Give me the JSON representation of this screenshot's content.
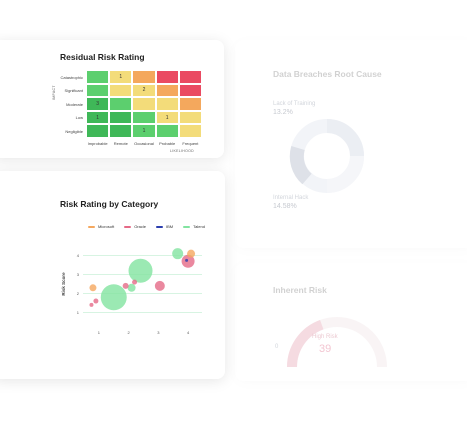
{
  "residual_card": {
    "title": "Residual Risk Rating",
    "y_axis_label": "IMPACT",
    "x_axis_label": "LIKELIHOOD",
    "rows": [
      "Catastrophic",
      "Significant",
      "Moderate",
      "Low",
      "Negligible"
    ],
    "columns": [
      "Improbable",
      "Remote",
      "Occasional",
      "Probable",
      "Frequent"
    ],
    "cells": [
      [
        {
          "c": "#5ccf6e",
          "v": ""
        },
        {
          "c": "#f3dc7a",
          "v": "1"
        },
        {
          "c": "#f4a85d",
          "v": ""
        },
        {
          "c": "#ea4a62",
          "v": ""
        },
        {
          "c": "#ea4a62",
          "v": ""
        }
      ],
      [
        {
          "c": "#5ccf6e",
          "v": ""
        },
        {
          "c": "#f3dc7a",
          "v": ""
        },
        {
          "c": "#f3dc7a",
          "v": "2"
        },
        {
          "c": "#f4a85d",
          "v": ""
        },
        {
          "c": "#ea4a62",
          "v": ""
        }
      ],
      [
        {
          "c": "#3fb858",
          "v": "3"
        },
        {
          "c": "#5ccf6e",
          "v": ""
        },
        {
          "c": "#f3dc7a",
          "v": ""
        },
        {
          "c": "#f3dc7a",
          "v": ""
        },
        {
          "c": "#f4a85d",
          "v": ""
        }
      ],
      [
        {
          "c": "#3fb858",
          "v": "1"
        },
        {
          "c": "#3fb858",
          "v": ""
        },
        {
          "c": "#5ccf6e",
          "v": ""
        },
        {
          "c": "#f3dc7a",
          "v": "1"
        },
        {
          "c": "#f3dc7a",
          "v": ""
        }
      ],
      [
        {
          "c": "#3fb858",
          "v": ""
        },
        {
          "c": "#3fb858",
          "v": ""
        },
        {
          "c": "#5ccf6e",
          "v": "1"
        },
        {
          "c": "#5ccf6e",
          "v": ""
        },
        {
          "c": "#f3dc7a",
          "v": ""
        }
      ]
    ]
  },
  "category_card": {
    "title": "Risk Rating by Category"
  },
  "chart_data": {
    "type": "scatter",
    "ylabel": "Risk Score",
    "legend_placement": "top",
    "x_ticks": [
      "1",
      "2",
      "3",
      "4"
    ],
    "y_ticks": [
      "1",
      "2",
      "3",
      "4"
    ],
    "xlim": [
      0.6,
      4.3
    ],
    "ylim": [
      0.6,
      4.4
    ],
    "series": [
      {
        "name": "Microsoft",
        "color": "#f5a85f",
        "points": [
          {
            "x": 0.8,
            "y": 2.3,
            "r": 0.35
          },
          {
            "x": 4.1,
            "y": 4.1,
            "r": 0.4
          }
        ]
      },
      {
        "name": "Oracle",
        "color": "#e56a87",
        "points": [
          {
            "x": 0.75,
            "y": 1.4,
            "r": 0.2
          },
          {
            "x": 0.9,
            "y": 1.6,
            "r": 0.25
          },
          {
            "x": 1.9,
            "y": 2.4,
            "r": 0.3
          },
          {
            "x": 2.2,
            "y": 2.6,
            "r": 0.25
          },
          {
            "x": 3.05,
            "y": 2.4,
            "r": 0.5
          },
          {
            "x": 4.0,
            "y": 3.7,
            "r": 0.65
          }
        ]
      },
      {
        "name": "IBM",
        "color": "#2c3fae",
        "points": [
          {
            "x": 3.95,
            "y": 3.75,
            "r": 0.15
          }
        ]
      },
      {
        "name": "Talend",
        "color": "#82e3a0",
        "points": [
          {
            "x": 2.4,
            "y": 3.2,
            "r": 1.2
          },
          {
            "x": 1.5,
            "y": 1.8,
            "r": 1.3
          },
          {
            "x": 2.1,
            "y": 2.3,
            "r": 0.4
          },
          {
            "x": 3.65,
            "y": 4.1,
            "r": 0.55
          }
        ]
      }
    ]
  },
  "breaches_card": {
    "title": "Data Breaches Root Cause",
    "label1": "Lack of Training",
    "value1": "13.2%",
    "label2": "Internal Hack",
    "value2": "14.58%"
  },
  "inherent_card": {
    "title": "Inherent Risk",
    "gauge_min": "0",
    "gauge_label": "High Risk",
    "gauge_value": "39",
    "gauge_fraction": 0.39
  }
}
